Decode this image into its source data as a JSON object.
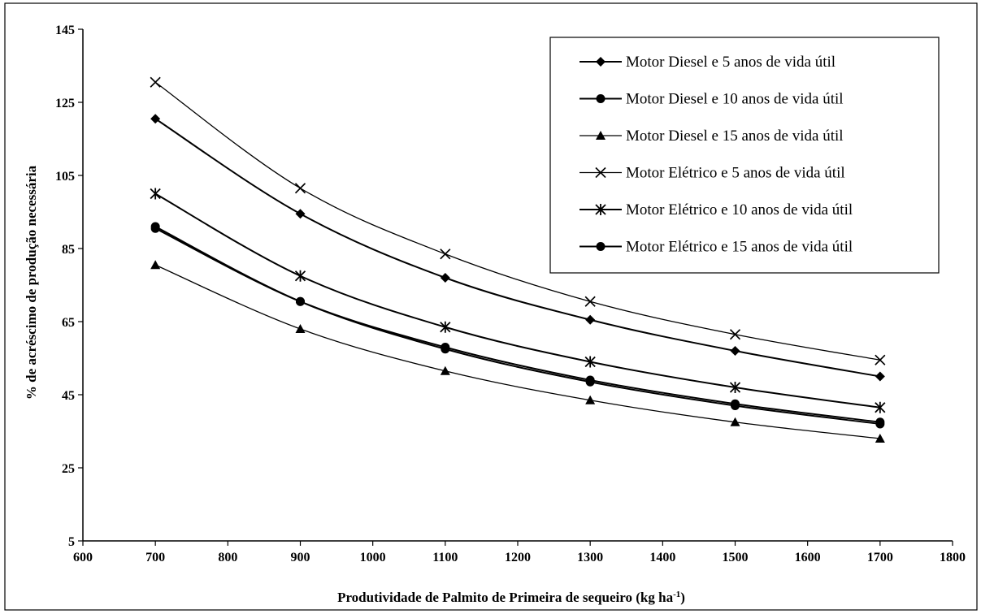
{
  "chart_data": {
    "type": "line",
    "title": "",
    "xlabel": "Produtividade de Palmito de Primeira de sequeiro (kg ha",
    "xlabel_superscript": "-1",
    "xlabel_suffix": ")",
    "ylabel": "% de acréscimo de produção necessária",
    "xlim": [
      600,
      1800
    ],
    "ylim": [
      5,
      145
    ],
    "xticks": [
      600,
      700,
      800,
      900,
      1000,
      1100,
      1200,
      1300,
      1400,
      1500,
      1600,
      1700,
      1800
    ],
    "yticks": [
      5,
      25,
      45,
      65,
      85,
      105,
      125,
      145
    ],
    "grid": false,
    "legend_position": "top-right",
    "x": [
      700,
      900,
      1100,
      1300,
      1500,
      1700
    ],
    "series": [
      {
        "name": "Motor Diesel e 5 anos de vida útil",
        "marker": "diamond",
        "values": [
          120.5,
          94.5,
          77.0,
          65.5,
          57.0,
          50.0
        ]
      },
      {
        "name": "Motor Diesel e 10 anos de vida útil",
        "marker": "circle",
        "values": [
          90.5,
          70.5,
          58.0,
          49.0,
          42.5,
          37.5
        ]
      },
      {
        "name": "Motor Diesel e 15 anos de vida útil",
        "marker": "triangle",
        "values": [
          80.5,
          63.0,
          51.5,
          43.5,
          37.5,
          33.0
        ]
      },
      {
        "name": "Motor Elétrico e 5 anos de vida útil",
        "marker": "x",
        "values": [
          130.5,
          101.5,
          83.5,
          70.5,
          61.5,
          54.5
        ]
      },
      {
        "name": "Motor Elétrico e 10 anos de vida útil",
        "marker": "asterisk",
        "values": [
          100.0,
          77.5,
          63.5,
          54.0,
          47.0,
          41.5
        ]
      },
      {
        "name": "Motor Elétrico e 15 anos de vida útil",
        "marker": "circle",
        "values": [
          91.0,
          70.5,
          57.5,
          48.5,
          42.0,
          37.0
        ]
      }
    ]
  }
}
